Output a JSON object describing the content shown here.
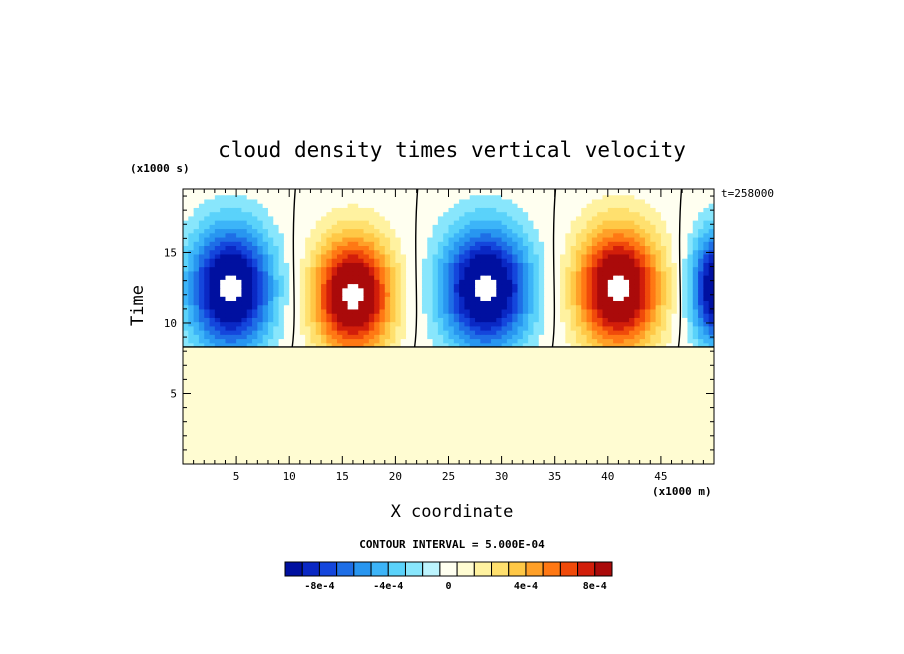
{
  "chart_data": {
    "type": "heatmap",
    "title": "cloud density times vertical velocity",
    "xlabel": "X coordinate",
    "ylabel": "Time",
    "x_unit": "(x1000 m)",
    "y_unit": "(x1000 s)",
    "timestamp": "t=258000",
    "contour_interval": "CONTOUR INTERVAL = 5.000E-04",
    "xlim": [
      0,
      50
    ],
    "ylim": [
      0,
      19.5
    ],
    "x_ticks": [
      5,
      10,
      15,
      20,
      25,
      30,
      35,
      40,
      45
    ],
    "y_ticks": [
      5,
      10,
      15
    ],
    "cloud_base_time": 8.3,
    "background_value": 0,
    "cells": [
      {
        "x": 4.5,
        "t": 12.5,
        "amplitude": -0.0011,
        "rx": 4.5,
        "ry": 5.0
      },
      {
        "x": 16.0,
        "t": 12.0,
        "amplitude": 0.0011,
        "rx": 4.3,
        "ry": 4.8
      },
      {
        "x": 28.5,
        "t": 12.5,
        "amplitude": -0.0011,
        "rx": 4.8,
        "ry": 5.0
      },
      {
        "x": 41.0,
        "t": 12.5,
        "amplitude": 0.0011,
        "rx": 4.6,
        "ry": 5.0
      },
      {
        "x": 50.5,
        "t": 12.5,
        "amplitude": -0.0011,
        "rx": 3.0,
        "ry": 4.5
      }
    ],
    "colorbar": {
      "labels": [
        "-8e-4",
        "-4e-4",
        "0",
        "4e-4",
        "8e-4"
      ],
      "label_values": [
        -0.0008,
        -0.0004,
        0,
        0.0004,
        0.0008
      ],
      "levels": [
        -0.0009,
        -0.0008,
        -0.0007,
        -0.0006,
        -0.0005,
        -0.0004,
        -0.0003,
        -0.0002,
        -0.0001,
        0,
        0.0001,
        0.0002,
        0.0003,
        0.0004,
        0.0005,
        0.0006,
        0.0007,
        0.0008,
        0.0009
      ],
      "colors": [
        "#0010a0",
        "#0a28c4",
        "#1446dc",
        "#1e6ee6",
        "#2896f0",
        "#3cb4f8",
        "#5ad2fa",
        "#88e6fc",
        "#bcf4fe",
        "#fffff0",
        "#fffcd2",
        "#fff2a0",
        "#ffe06e",
        "#ffc846",
        "#ffa028",
        "#ff7814",
        "#f04a0a",
        "#d21e0a",
        "#aa0a0a"
      ]
    }
  }
}
